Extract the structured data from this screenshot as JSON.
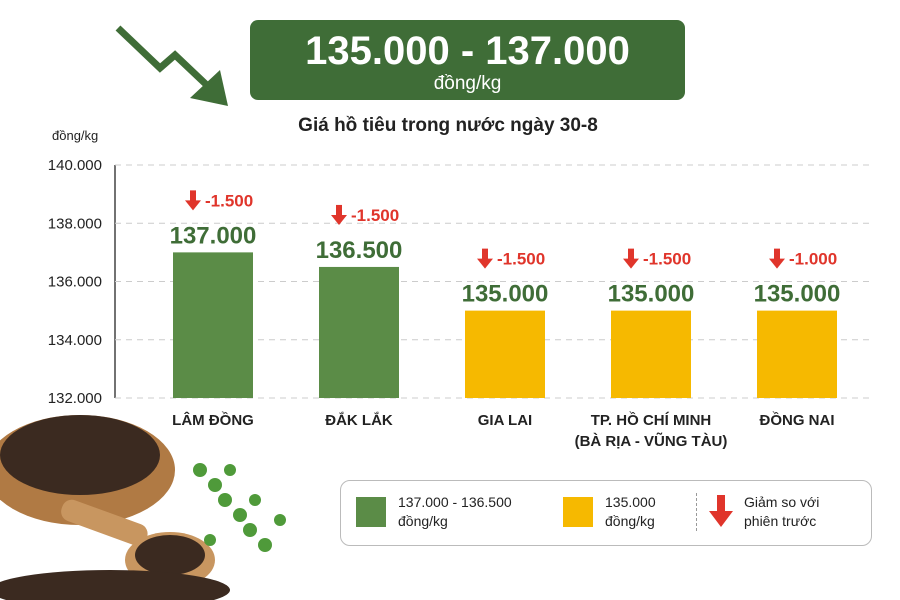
{
  "header": {
    "range": "135.000 - 137.000",
    "unit": "đồng/kg"
  },
  "chart_data": {
    "type": "bar",
    "title": "Giá hồ tiêu trong nước ngày 30-8",
    "y_unit": "đồng/kg",
    "categories": [
      "LÂM ĐỒNG",
      "ĐẮK LẮK",
      "GIA LAI",
      "TP. HỒ CHÍ MINH\n(BÀ RỊA - VŨNG TÀU)",
      "ĐỒNG NAI"
    ],
    "values": [
      137000,
      136500,
      135000,
      135000,
      135000
    ],
    "value_labels": [
      "137.000",
      "136.500",
      "135.000",
      "135.000",
      "135.000"
    ],
    "colors": [
      "#5b8c47",
      "#5b8c47",
      "#f6b900",
      "#f6b900",
      "#f6b900"
    ],
    "changes": [
      -1500,
      -1500,
      -1500,
      -1500,
      -1000
    ],
    "change_labels": [
      "-1.500",
      "-1.500",
      "-1.500",
      "-1.500",
      "-1.000"
    ],
    "change_color": "#e0352b",
    "ylim": [
      132000,
      140000
    ],
    "yticks": [
      {
        "value": 132000,
        "label": "132.000"
      },
      {
        "value": 134000,
        "label": "134.000"
      },
      {
        "value": 136000,
        "label": "136.000"
      },
      {
        "value": 138000,
        "label": "138.000"
      },
      {
        "value": 140000,
        "label": "140.000"
      }
    ],
    "grid": true,
    "legend": [
      {
        "label": "137.000 - 136.500\nđồng/kg",
        "color": "#5b8c47"
      },
      {
        "label": "135.000\nđồng/kg",
        "color": "#f6b900"
      },
      {
        "label": "Giảm so với\nphiên trước",
        "color": "#e0352b"
      }
    ]
  }
}
